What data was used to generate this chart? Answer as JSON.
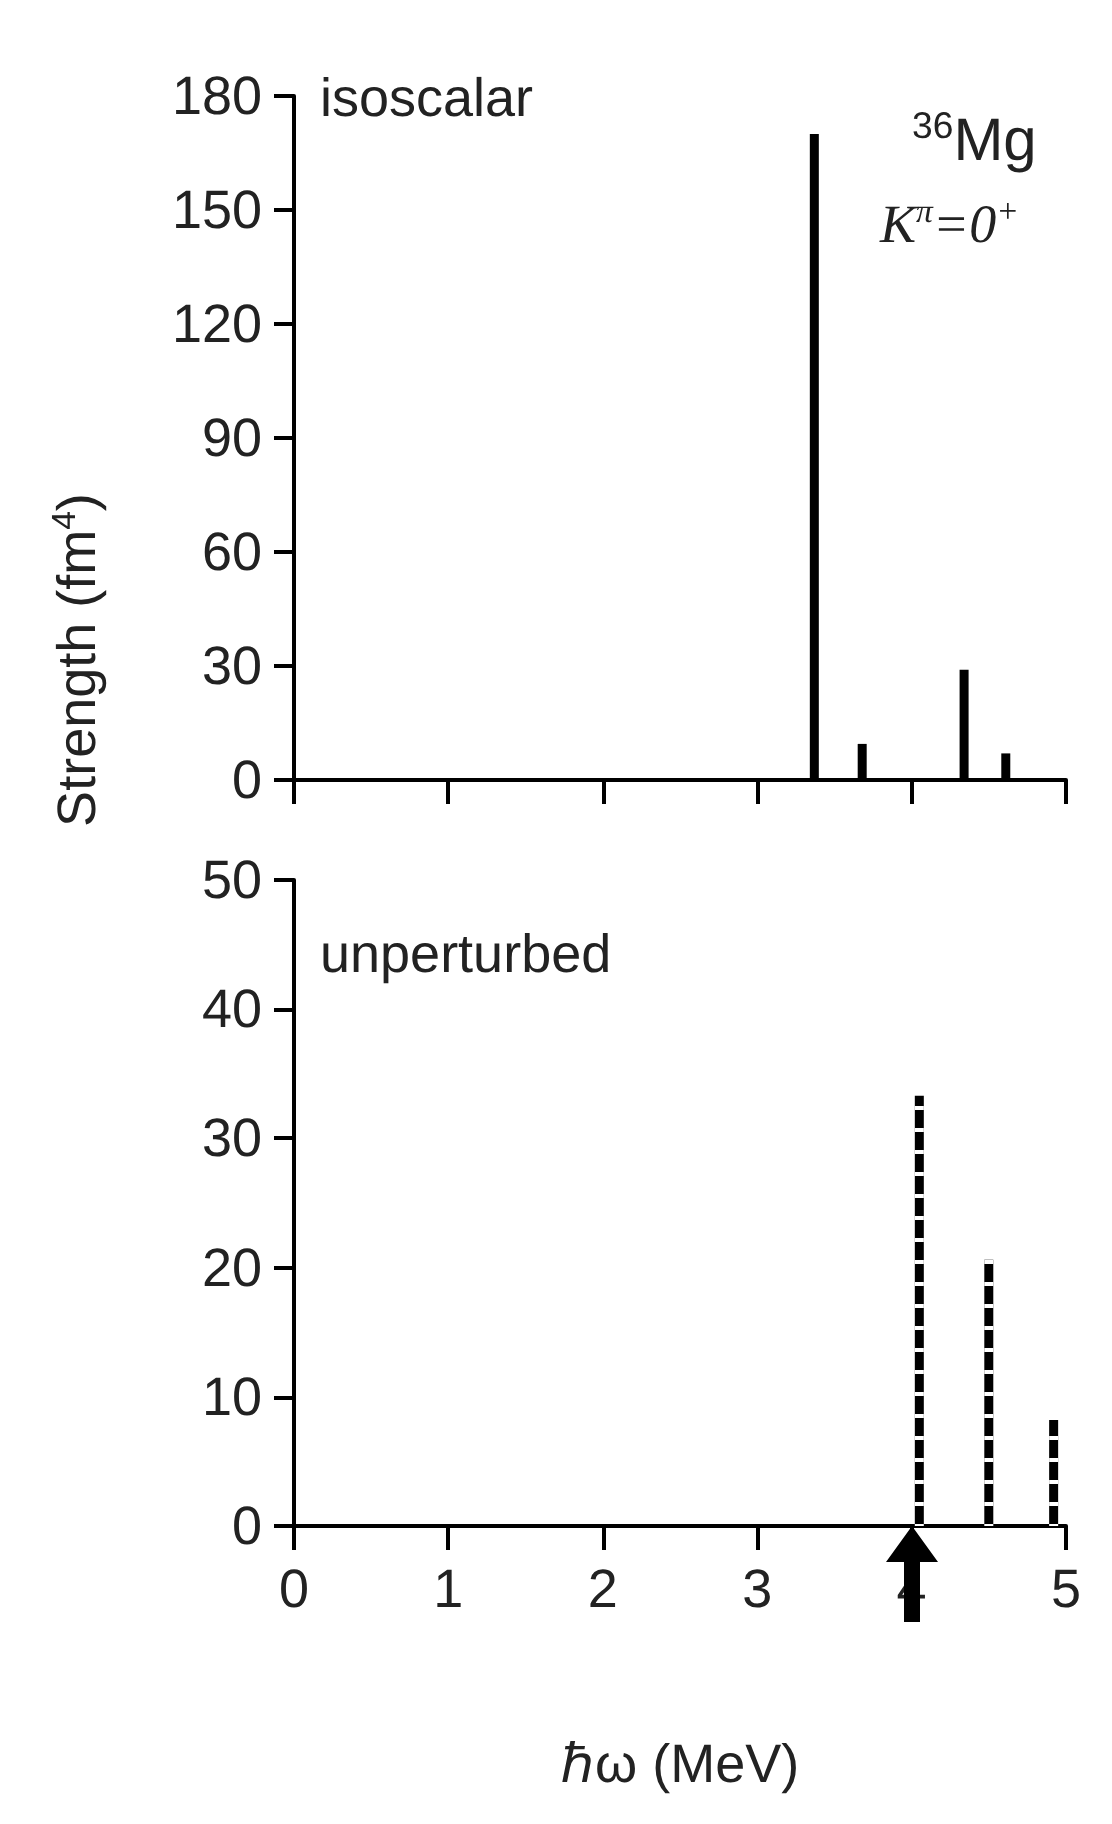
{
  "chart_data": [
    {
      "type": "bar",
      "ylabel": "Strength (fm$^{4}$)",
      "annotations": [
        "isoscalar",
        "$^{36}$Mg",
        "K$^{π}$=0$^{+}$"
      ],
      "x": [
        3.37,
        3.68,
        4.34,
        4.61
      ],
      "values": [
        170,
        9.5,
        29,
        7
      ],
      "color": "#000000",
      "xlim": [
        0,
        5
      ],
      "xticks": [
        {
          "value": 0,
          "label": null
        },
        {
          "value": 1,
          "label": null
        },
        {
          "value": 2,
          "label": null
        },
        {
          "value": 3,
          "label": null
        },
        {
          "value": 4,
          "label": null
        },
        {
          "value": 5,
          "label": null
        }
      ],
      "ylim": [
        0,
        180
      ],
      "yticks": [
        0,
        30,
        60,
        90,
        120,
        150,
        180
      ],
      "tick_labels": "y",
      "grid": false,
      "line_style": "solid"
    },
    {
      "type": "bar",
      "xlabel": "ℏω (MeV)",
      "annotations": [
        "unperturbed"
      ],
      "x": [
        4.05,
        4.5,
        4.92
      ],
      "values": [
        33.3,
        20.6,
        8.2
      ],
      "color": "#000000",
      "xlim": [
        0,
        5
      ],
      "xticks": [
        0,
        1,
        2,
        3,
        4,
        5
      ],
      "ylim": [
        0,
        50
      ],
      "yticks": [
        0,
        10,
        20,
        30,
        40,
        50
      ],
      "grid": false,
      "line_style": "dashed"
    }
  ]
}
